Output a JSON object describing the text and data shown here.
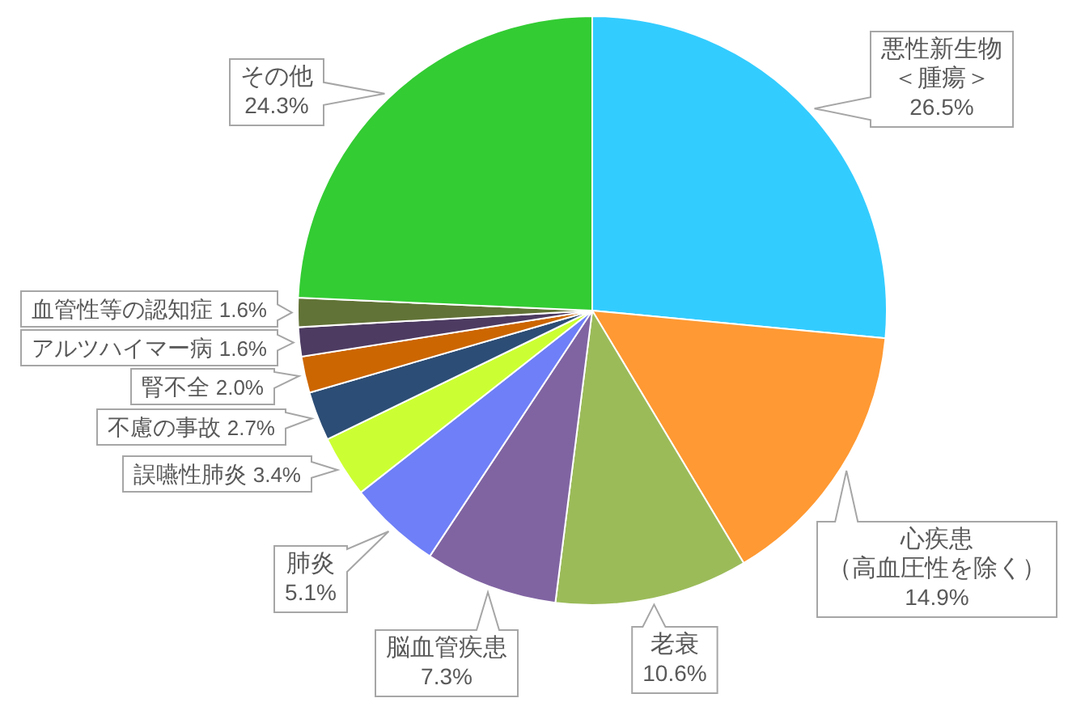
{
  "chart_data": {
    "type": "pie",
    "categories": [
      "悪性新生物＜腫瘍＞",
      "心疾患（高血圧性を除く）",
      "老衰",
      "脳血管疾患",
      "肺炎",
      "誤嚥性肺炎",
      "不慮の事故",
      "腎不全",
      "アルツハイマー病",
      "血管性等の認知症",
      "その他"
    ],
    "values": [
      26.5,
      14.9,
      10.6,
      7.3,
      5.1,
      3.4,
      2.7,
      2.0,
      1.6,
      1.6,
      24.3
    ],
    "colors": [
      "#33ccff",
      "#ff9933",
      "#9bbb59",
      "#8064a2",
      "#6f7ff7",
      "#ccff33",
      "#2c4d75",
      "#cc6600",
      "#4d3b62",
      "#627337",
      "#33cc33"
    ],
    "value_labels": [
      "26.5%",
      "14.9%",
      "10.6%",
      "7.3%",
      "5.1%",
      "3.4%",
      "2.7%",
      "2.0%",
      "1.6%",
      "1.6%",
      "24.3%"
    ]
  }
}
